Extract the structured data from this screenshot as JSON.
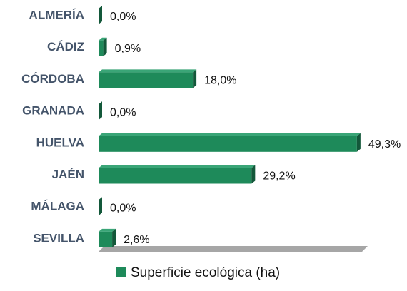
{
  "chart_data": {
    "type": "bar",
    "orientation": "horizontal",
    "categories": [
      "ALMERÍA",
      "CÁDIZ",
      "CÓRDOBA",
      "GRANADA",
      "HUELVA",
      "JAÉN",
      "MÁLAGA",
      "SEVILLA"
    ],
    "series": [
      {
        "name": "Superficie ecológica (ha)",
        "color": "#1e8a5a",
        "values": [
          0.0,
          0.9,
          18.0,
          0.0,
          49.3,
          29.2,
          0.0,
          2.6
        ],
        "value_labels": [
          "0,0%",
          "0,9%",
          "18,0%",
          "0,0%",
          "49,3%",
          "29,2%",
          "0,0%",
          "2,6%"
        ]
      }
    ],
    "xlim": [
      0,
      50
    ],
    "legend": "bottom"
  }
}
